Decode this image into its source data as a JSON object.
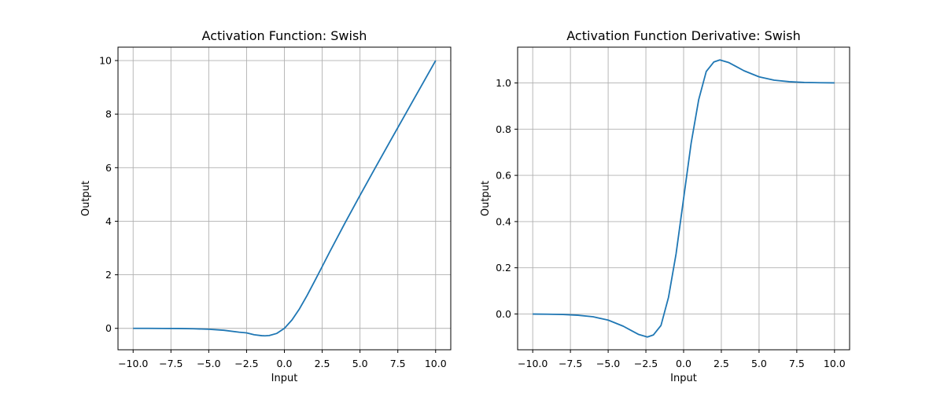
{
  "chart_data": [
    {
      "type": "line",
      "title": "Activation Function: Swish",
      "xlabel": "Input",
      "ylabel": "Output",
      "xlim": [
        -11,
        11
      ],
      "ylim": [
        -0.8,
        10.5
      ],
      "xticks": [
        -10,
        -7.5,
        -5,
        -2.5,
        0,
        2.5,
        5,
        7.5,
        10
      ],
      "xtick_labels": [
        "−10.0",
        "−7.5",
        "−5.0",
        "−2.5",
        "0.0",
        "2.5",
        "5.0",
        "7.5",
        "10.0"
      ],
      "yticks": [
        0,
        2,
        4,
        6,
        8,
        10
      ],
      "ytick_labels": [
        "0",
        "2",
        "4",
        "6",
        "8",
        "10"
      ],
      "grid": true,
      "color": "#1f77b4",
      "series": [
        {
          "x": [
            -10,
            -9,
            -8,
            -7,
            -6,
            -5,
            -4,
            -3,
            -2.5,
            -2,
            -1.5,
            -1.28,
            -1,
            -0.5,
            0,
            0.5,
            1,
            1.5,
            2,
            2.5,
            3,
            4,
            5,
            6,
            7,
            8,
            9,
            10
          ],
          "values": [
            -0.0005,
            -0.0011,
            -0.0027,
            -0.0064,
            -0.0148,
            -0.0335,
            -0.0719,
            -0.1423,
            -0.1687,
            -0.2384,
            -0.2736,
            -0.2785,
            -0.2689,
            -0.1888,
            0,
            0.3112,
            0.7311,
            1.2264,
            1.7616,
            2.3077,
            2.8577,
            3.9281,
            4.9665,
            5.9852,
            6.9936,
            7.9973,
            8.9989,
            9.9995
          ]
        }
      ]
    },
    {
      "type": "line",
      "title": "Activation Function Derivative: Swish",
      "xlabel": "Input",
      "ylabel": "Output",
      "xlim": [
        -11,
        11
      ],
      "ylim": [
        -0.155,
        1.155
      ],
      "xticks": [
        -10,
        -7.5,
        -5,
        -2.5,
        0,
        2.5,
        5,
        7.5,
        10
      ],
      "xtick_labels": [
        "−10.0",
        "−7.5",
        "−5.0",
        "−2.5",
        "0.0",
        "2.5",
        "5.0",
        "7.5",
        "10.0"
      ],
      "yticks": [
        0,
        0.2,
        0.4,
        0.6,
        0.8,
        1.0
      ],
      "ytick_labels": [
        "0.0",
        "0.2",
        "0.4",
        "0.6",
        "0.8",
        "1.0"
      ],
      "grid": true,
      "color": "#1f77b4",
      "series": [
        {
          "x": [
            -10,
            -9,
            -8,
            -7,
            -6,
            -5,
            -4,
            -3.5,
            -3,
            -2.4,
            -2,
            -1.5,
            -1,
            -0.5,
            0,
            0.5,
            1,
            1.5,
            2,
            2.4,
            3,
            3.5,
            4,
            5,
            6,
            7,
            8,
            9,
            10
          ],
          "values": [
            -0.0004,
            -0.001,
            -0.0024,
            -0.0055,
            -0.0122,
            -0.0266,
            -0.053,
            -0.0706,
            -0.0881,
            -0.0998,
            -0.0907,
            -0.0498,
            0.0723,
            0.26,
            0.5,
            0.74,
            0.9277,
            1.0498,
            1.0907,
            1.0998,
            1.0881,
            1.0706,
            1.053,
            1.0266,
            1.0122,
            1.0055,
            1.0024,
            1.001,
            1.0004
          ]
        }
      ]
    }
  ]
}
